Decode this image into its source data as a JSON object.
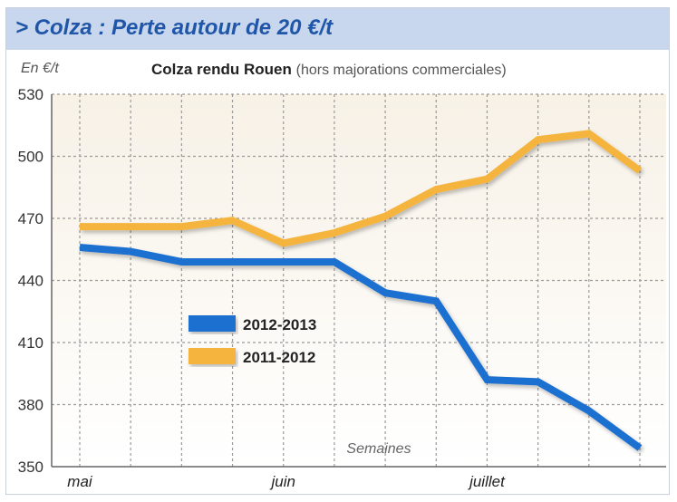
{
  "header": {
    "title": "> Colza : Perte autour de 20 €/t"
  },
  "chart_data": {
    "type": "line",
    "title": "Colza rendu Rouen",
    "subtitle": "(hors majorations commerciales)",
    "ylabel": "En €/t",
    "xlabel": "Semaines",
    "ylim": [
      350,
      530
    ],
    "yticks": [
      350,
      380,
      410,
      440,
      470,
      500,
      530
    ],
    "x_tick_labels": [
      {
        "label": "mai",
        "x": 0
      },
      {
        "label": "juin",
        "x": 4
      },
      {
        "label": "juillet",
        "x": 8
      }
    ],
    "x": [
      0,
      1,
      2,
      3,
      4,
      5,
      6,
      7,
      8,
      9,
      10,
      11
    ],
    "grid": true,
    "legend_position": "center-left",
    "series": [
      {
        "name": "2012-2013",
        "color": "#1f6fd0",
        "values": [
          456,
          454,
          449,
          449,
          449,
          449,
          434,
          430,
          392,
          391,
          377,
          359
        ]
      },
      {
        "name": "2011-2012",
        "color": "#f5b43c",
        "values": [
          466,
          466,
          466,
          469,
          458,
          463,
          471,
          484,
          489,
          508,
          511,
          493
        ]
      }
    ]
  }
}
